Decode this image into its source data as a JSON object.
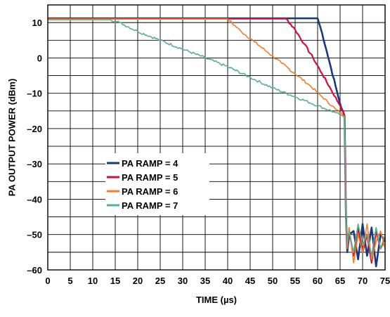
{
  "chart_data": {
    "type": "line",
    "title": "",
    "xlabel": "TIME (µs)",
    "ylabel": "PA OUTPUT POWER (dBm)",
    "xlim": [
      0,
      75
    ],
    "ylim": [
      -60,
      15
    ],
    "x_ticks": [
      "0",
      "5",
      "10",
      "15",
      "20",
      "25",
      "30",
      "35",
      "40",
      "45",
      "50",
      "55",
      "60",
      "65",
      "70",
      "75"
    ],
    "y_ticks": [
      "10",
      "0",
      "–10",
      "–20",
      "–30",
      "–40",
      "–50",
      "–60"
    ],
    "grid": true,
    "legend_position": "left-middle",
    "series": [
      {
        "name": "PA RAMP = 4",
        "color": "#1a3a7e",
        "x": [
          0,
          55,
          60,
          61,
          62,
          63,
          64,
          65,
          66,
          66.3,
          66.6,
          67,
          68,
          69,
          70,
          71,
          72,
          73,
          74,
          75
        ],
        "y": [
          11.2,
          11.2,
          11.2,
          7,
          2,
          -3,
          -8,
          -13,
          -16.5,
          -45,
          -55,
          -50,
          -49,
          -57,
          -47,
          -56,
          -48,
          -59,
          -50,
          -52
        ]
      },
      {
        "name": "PA RAMP = 5",
        "color": "#d0103a",
        "x": [
          0,
          53,
          55,
          57,
          59,
          61,
          63,
          65,
          66,
          66.3,
          66.6,
          67,
          68,
          69,
          70,
          71,
          72,
          73,
          74,
          75
        ],
        "y": [
          11.1,
          11.1,
          8,
          4,
          0,
          -4.5,
          -9,
          -13.5,
          -16.5,
          -44,
          -53,
          -49,
          -56,
          -48,
          -55,
          -50,
          -58,
          -49,
          -54,
          -51
        ]
      },
      {
        "name": "PA RAMP = 6",
        "color": "#f47c2c",
        "x": [
          0,
          40,
          43,
          46,
          49,
          52,
          55,
          58,
          61,
          64,
          66,
          66.3,
          66.6,
          67,
          68,
          69,
          70,
          71,
          72,
          73,
          74,
          75
        ],
        "y": [
          11,
          11,
          7.5,
          4.5,
          1.5,
          -1.5,
          -4.5,
          -7.5,
          -11,
          -14.5,
          -16.5,
          -46,
          -54,
          -48,
          -58,
          -50,
          -55,
          -47,
          -57,
          -52,
          -49,
          -54
        ]
      },
      {
        "name": "PA RAMP = 7",
        "color": "#5ab08a",
        "x": [
          0,
          14,
          16,
          20,
          25,
          30,
          35,
          40,
          45,
          50,
          55,
          60,
          64,
          66,
          66.3,
          66.6,
          67,
          68,
          69,
          70,
          71,
          72,
          73,
          74,
          75
        ],
        "y": [
          10.8,
          10.8,
          10,
          7.5,
          5,
          2.5,
          0,
          -2.5,
          -5.5,
          -8.5,
          -11,
          -13.5,
          -15.5,
          -17,
          -46,
          -52,
          -49,
          -55,
          -47,
          -53,
          -50,
          -56,
          -48,
          -54,
          -50
        ]
      }
    ]
  }
}
